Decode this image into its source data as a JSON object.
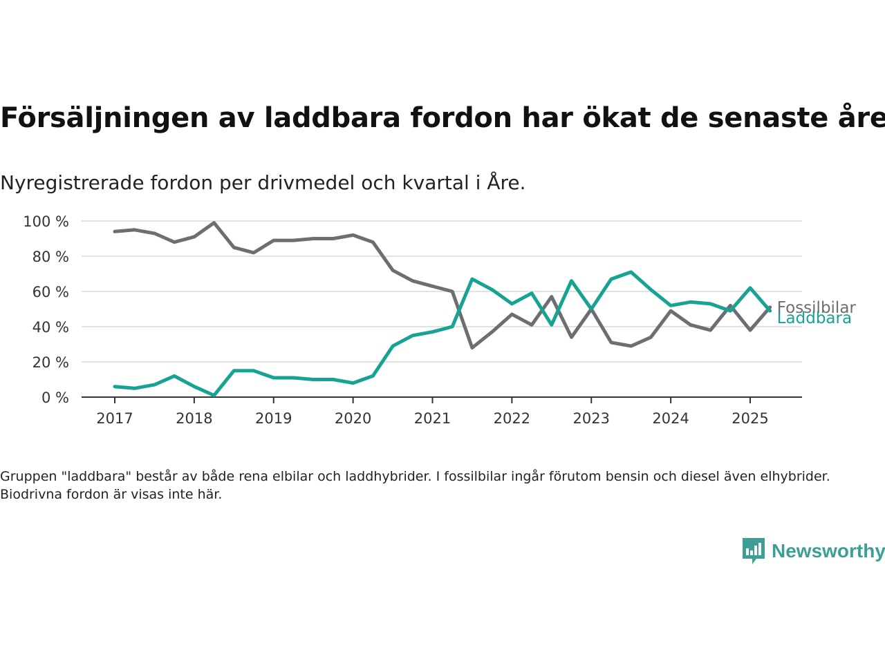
{
  "title": "Försäljningen av laddbara fordon har ökat de senaste åren",
  "subtitle": "Nyregistrerade fordon per drivmedel och kvartal i Åre.",
  "note": "Gruppen \"laddbara\" består av både rena elbilar och laddhybrider. I fossilbilar ingår förutom bensin och diesel även elhybrider. Biodrivna fordon är visas inte här.",
  "brand": {
    "name": "Newsworthy",
    "icon": "newsworthy-logo-icon",
    "color": "#3d9e95"
  },
  "chart_data": {
    "type": "line",
    "ylim": [
      0,
      100
    ],
    "y_ticks": [
      0,
      20,
      40,
      60,
      80,
      100
    ],
    "y_tick_labels": [
      "0 %",
      "20 %",
      "40 %",
      "60 %",
      "80 %",
      "100 %"
    ],
    "x_ticks": [
      2017,
      2018,
      2019,
      2020,
      2021,
      2022,
      2023,
      2024,
      2025
    ],
    "x_tick_labels": [
      "2017",
      "2018",
      "2019",
      "2020",
      "2021",
      "2022",
      "2023",
      "2024",
      "2025"
    ],
    "xlim": [
      2016.58,
      2025.66
    ],
    "grid": true,
    "legend": "direct labels at line ends",
    "x": [
      2017.0,
      2017.25,
      2017.5,
      2017.75,
      2018.0,
      2018.25,
      2018.5,
      2018.75,
      2019.0,
      2019.25,
      2019.5,
      2019.75,
      2020.0,
      2020.25,
      2020.5,
      2020.75,
      2021.0,
      2021.25,
      2021.5,
      2021.75,
      2022.0,
      2022.25,
      2022.5,
      2022.75,
      2023.0,
      2023.25,
      2023.5,
      2023.75,
      2024.0,
      2024.25,
      2024.5,
      2024.75,
      2025.0,
      2025.25
    ],
    "series": [
      {
        "name": "Fossilbilar",
        "color": "#6d6e71",
        "values": [
          94,
          95,
          93,
          88,
          91,
          99,
          85,
          82,
          89,
          89,
          90,
          90,
          92,
          88,
          72,
          66,
          63,
          60,
          28,
          37,
          47,
          41,
          57,
          34,
          50,
          31,
          29,
          34,
          49,
          41,
          38,
          52,
          38,
          51
        ]
      },
      {
        "name": "Laddbara",
        "color": "#16a394",
        "values": [
          6,
          5,
          7,
          12,
          6,
          1,
          15,
          15,
          11,
          11,
          10,
          10,
          8,
          12,
          29,
          35,
          37,
          40,
          67,
          61,
          53,
          59,
          41,
          66,
          50,
          67,
          71,
          61,
          52,
          54,
          53,
          49,
          62,
          49
        ]
      }
    ]
  }
}
